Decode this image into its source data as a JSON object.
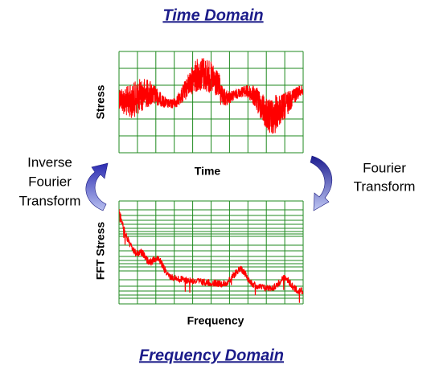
{
  "header": {
    "title": "Time Domain"
  },
  "time_chart": {
    "y_label": "Stress",
    "x_label": "Time"
  },
  "frequency_chart": {
    "y_label": "FFT Stress",
    "x_label": "Frequency"
  },
  "left_arrow": {
    "label": [
      "Inverse",
      "Fourier",
      "Transform"
    ]
  },
  "right_arrow": {
    "label": [
      "Fourier",
      "Transform"
    ]
  },
  "footer": {
    "title": "Frequency Domain"
  }
}
